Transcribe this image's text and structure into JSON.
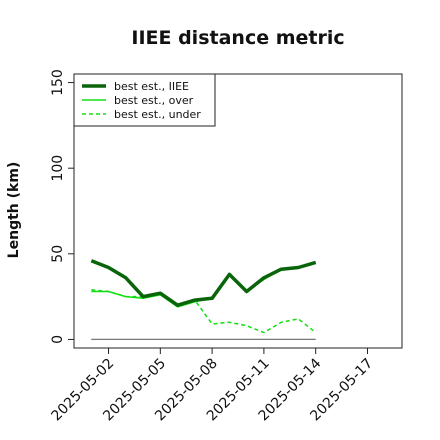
{
  "chart_data": {
    "type": "line",
    "title": "IIEE distance metric",
    "xlabel": "",
    "ylabel": "Length (km)",
    "ylim": [
      -5,
      155
    ],
    "xlim": [
      "2025-04-30",
      "2025-05-19"
    ],
    "grid": false,
    "legend_position": "top-left",
    "x_ticks": [
      "2025-05-02",
      "2025-05-05",
      "2025-05-08",
      "2025-05-11",
      "2025-05-14",
      "2025-05-17"
    ],
    "y_ticks": [
      "0",
      "50",
      "100",
      "150"
    ],
    "x": [
      "2025-05-01",
      "2025-05-02",
      "2025-05-03",
      "2025-05-04",
      "2025-05-05",
      "2025-05-06",
      "2025-05-07",
      "2025-05-08",
      "2025-05-09",
      "2025-05-10",
      "2025-05-11",
      "2025-05-12",
      "2025-05-13",
      "2025-05-14"
    ],
    "series": [
      {
        "name": "best est., IIEE",
        "color": "#0a640a",
        "style": "solid-thick",
        "values": [
          46,
          42,
          36,
          25,
          27,
          20,
          23,
          24,
          38,
          28,
          36,
          41,
          42,
          45
        ]
      },
      {
        "name": "best est., over",
        "color": "#10e010",
        "style": "solid",
        "values": [
          28,
          28,
          25,
          24,
          26,
          19,
          22,
          24,
          38,
          28,
          35,
          41,
          42,
          45
        ]
      },
      {
        "name": "best est., under",
        "color": "#10e010",
        "style": "dashed",
        "values": [
          29,
          28,
          25,
          25,
          27,
          20,
          23,
          9,
          10,
          8,
          4,
          10,
          12,
          4
        ]
      },
      {
        "name": "",
        "color": "#777777",
        "style": "baseline",
        "values": [
          0,
          0,
          0,
          0,
          0,
          0,
          0,
          0,
          0,
          0,
          0,
          0,
          0,
          0
        ]
      }
    ]
  }
}
